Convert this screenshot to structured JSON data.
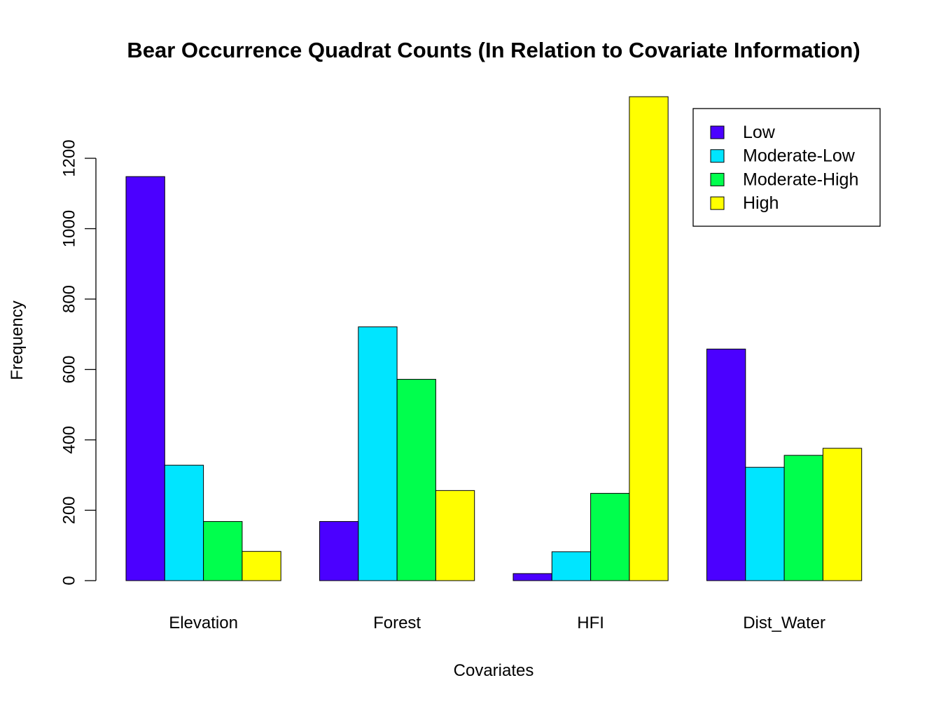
{
  "chart_data": {
    "type": "bar",
    "title": "Bear Occurrence Quadrat Counts (In Relation to Covariate Information)",
    "xlabel": "Covariates",
    "ylabel": "Frequency",
    "ylim": [
      0,
      1380
    ],
    "yticks": [
      "0",
      "200",
      "400",
      "600",
      "800",
      "1000",
      "1200"
    ],
    "categories": [
      "Elevation",
      "Forest",
      "HFI",
      "Dist_Water"
    ],
    "series": [
      {
        "name": "Low",
        "color": "#4B00FF",
        "values": [
          1148,
          168,
          20,
          658
        ]
      },
      {
        "name": "Moderate-Low",
        "color": "#00E5FF",
        "values": [
          328,
          721,
          82,
          322
        ]
      },
      {
        "name": "Moderate-High",
        "color": "#00FF4D",
        "values": [
          168,
          572,
          248,
          356
        ]
      },
      {
        "name": "High",
        "color": "#FFFF00",
        "values": [
          83,
          256,
          1375,
          376
        ]
      }
    ],
    "legend_position": "top-right"
  }
}
